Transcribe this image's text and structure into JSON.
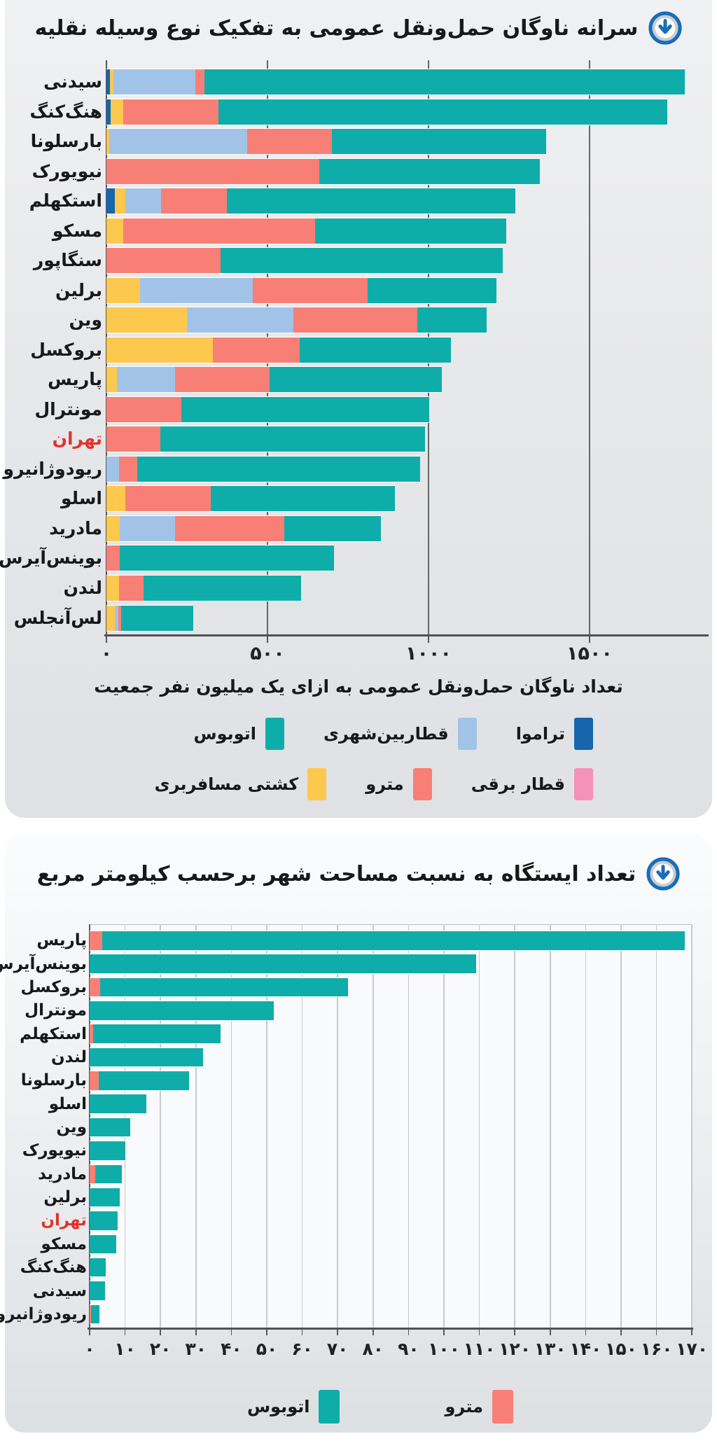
{
  "colors": {
    "bus": "#0fada9",
    "metro": "#f87f75",
    "intercity": "#a2c3e8",
    "tram": "#1566aa",
    "ship": "#fdc84e",
    "electric": "#f492ba",
    "highlight_label": "#e0332e",
    "icon_blue": "#1a6db6",
    "icon_ring_gray": "#c9ccd1"
  },
  "icons": {
    "section_marker": "circled-down-arrow-icon"
  },
  "chart_data": [
    {
      "type": "bar",
      "stacked": true,
      "orientation": "horizontal",
      "rtl": true,
      "title": "سرانه ناوگان حمل‌ونقل عمومی به تفکیک نوع وسیله نقلیه",
      "xlabel": "تعداد ناوگان حمل‌ونقل عمومی به ازای یک میلیون نفر جمعیت",
      "xlim": [
        0,
        1860
      ],
      "grid": true,
      "xticks": {
        "values": [
          0,
          500,
          1000,
          1500
        ],
        "labels": [
          "۰",
          "۵۰۰",
          "۱۰۰۰",
          "۱۵۰۰"
        ]
      },
      "highlight": {
        "category": "تهران",
        "color": "#e0332e"
      },
      "categories": [
        "سیدنی",
        "هنگ‌کنگ",
        "بارسلونا",
        "نیویورک",
        "استکهلم",
        "مسکو",
        "سنگاپور",
        "برلین",
        "وین",
        "بروکسل",
        "پاریس",
        "مونترال",
        "تهران",
        "ریودوژانیرو",
        "اسلو",
        "مادرید",
        "بوینس‌آیرس",
        "لندن",
        "لس‌آنجلس"
      ],
      "series": [
        {
          "key": "tram",
          "name": "تراموا",
          "color": "#1566aa",
          "values": [
            10,
            12,
            0,
            0,
            26,
            0,
            0,
            0,
            0,
            0,
            0,
            0,
            0,
            0,
            0,
            0,
            0,
            0,
            0
          ]
        },
        {
          "key": "ship",
          "name": "کشتی مسافربری",
          "color": "#fdc84e",
          "values": [
            12,
            40,
            8,
            0,
            33,
            52,
            0,
            105,
            250,
            330,
            32,
            0,
            0,
            0,
            58,
            42,
            0,
            40,
            25
          ]
        },
        {
          "key": "intercity",
          "name": "قطاربین‌شهری",
          "color": "#a2c3e8",
          "values": [
            255,
            0,
            430,
            0,
            110,
            0,
            0,
            350,
            330,
            0,
            180,
            0,
            0,
            40,
            0,
            170,
            0,
            0,
            12
          ]
        },
        {
          "key": "metro",
          "name": "مترو",
          "color": "#f87f75",
          "values": [
            28,
            295,
            262,
            660,
            205,
            595,
            355,
            355,
            385,
            270,
            295,
            232,
            168,
            55,
            265,
            340,
            42,
            75,
            8
          ]
        },
        {
          "key": "electric",
          "name": "قطار برقی",
          "color": "#f492ba",
          "values": [
            0,
            0,
            0,
            0,
            0,
            0,
            0,
            0,
            0,
            0,
            0,
            0,
            0,
            0,
            0,
            0,
            0,
            0,
            0
          ]
        },
        {
          "key": "bus",
          "name": "اتوبوس",
          "color": "#0fada9",
          "values": [
            1490,
            1395,
            665,
            685,
            895,
            595,
            875,
            400,
            215,
            470,
            535,
            770,
            822,
            880,
            572,
            300,
            665,
            490,
            225
          ]
        }
      ],
      "legend_rows": [
        [
          "tram",
          "intercity",
          "bus"
        ],
        [
          "electric",
          "metro",
          "ship"
        ]
      ]
    },
    {
      "type": "bar",
      "stacked": true,
      "orientation": "horizontal",
      "rtl": true,
      "title": "تعداد ایستگاه به نسبت مساحت شهر برحسب کیلومتر مربع",
      "xlabel": "",
      "xlim": [
        0,
        170
      ],
      "grid": true,
      "xticks": {
        "values": [
          0,
          10,
          20,
          30,
          40,
          50,
          60,
          70,
          80,
          90,
          100,
          110,
          120,
          130,
          140,
          150,
          160,
          170
        ],
        "labels": [
          "۰",
          "۱۰",
          "۲۰",
          "۳۰",
          "۴۰",
          "۵۰",
          "۶۰",
          "۷۰",
          "۸۰",
          "۹۰",
          "۱۰۰",
          "۱۱۰",
          "۱۲۰",
          "۱۳۰",
          "۱۴۰",
          "۱۵۰",
          "۱۶۰",
          "۱۷۰"
        ]
      },
      "highlight": {
        "category": "تهران",
        "color": "#e0332e"
      },
      "categories": [
        "پاریس",
        "بوینس‌آیرس",
        "بروکسل",
        "مونترال",
        "استکهلم",
        "لندن",
        "بارسلونا",
        "اسلو",
        "وین",
        "نیویورک",
        "مادرید",
        "برلین",
        "تهران",
        "مسکو",
        "هنگ‌کنگ",
        "سیدنی",
        "ریودوژانیرو"
      ],
      "series": [
        {
          "key": "metro",
          "name": "مترو",
          "color": "#f87f75",
          "values": [
            3.5,
            0,
            3,
            0,
            1,
            0,
            2.5,
            0,
            0,
            0,
            1.5,
            0,
            0,
            0,
            0,
            0,
            0.4
          ]
        },
        {
          "key": "bus",
          "name": "اتوبوس",
          "color": "#0fada9",
          "values": [
            164.5,
            109,
            70,
            52,
            36,
            32,
            25.5,
            16,
            11.5,
            10,
            7.5,
            8.5,
            8,
            7.5,
            4.5,
            4.3,
            2.4
          ]
        }
      ],
      "legend_rows": [
        [
          "metro",
          "bus"
        ]
      ]
    }
  ]
}
